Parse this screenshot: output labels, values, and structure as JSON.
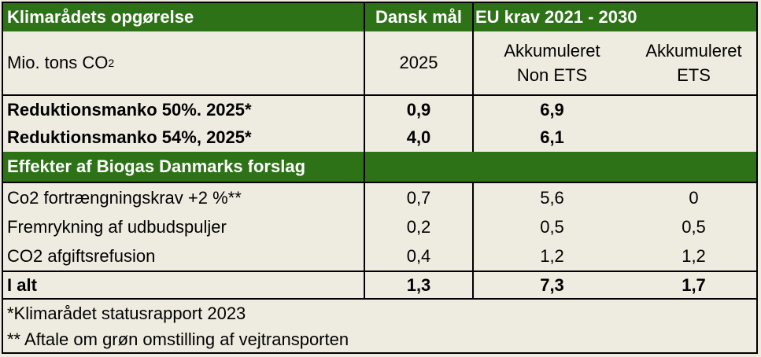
{
  "header": {
    "col1": "Klimarådets opgørelse",
    "col2": "Dansk mål",
    "col3": "EU krav 2021 - 2030"
  },
  "units_row": {
    "label_main": "Mio. tons CO",
    "label_sub": "2",
    "col2": "2025",
    "col3_line1": "Akkumuleret",
    "col3_line2": "Non ETS",
    "col4_line1": "Akkumuleret",
    "col4_line2": "ETS"
  },
  "shortfall_rows": [
    {
      "label": "Reduktionsmanko 50%. 2025*",
      "dansk": "0,9",
      "non_ets": "6,9",
      "ets": ""
    },
    {
      "label": "Reduktionsmanko 54%, 2025*",
      "dansk": "4,0",
      "non_ets": "6,1",
      "ets": ""
    }
  ],
  "section_title": "Effekter af Biogas Danmarks forslag",
  "effect_rows": [
    {
      "label": "Co2 fortrængningskrav +2 %**",
      "dansk": "0,7",
      "non_ets": "5,6",
      "ets": "0"
    },
    {
      "label": "Fremrykning af udbudspuljer",
      "dansk": "0,2",
      "non_ets": "0,5",
      "ets": "0,5"
    },
    {
      "label": "CO2 afgiftsrefusion",
      "dansk": "0,4",
      "non_ets": "1,2",
      "ets": "1,2"
    }
  ],
  "total_row": {
    "label": "I alt",
    "dansk": "1,3",
    "non_ets": "7,3",
    "ets": "1,7"
  },
  "footnotes": [
    "*Klimarådet statusrapport 2023",
    "** Aftale om grøn omstilling af vejtransporten"
  ],
  "colors": {
    "header_green": "#2e7218",
    "background": "#eeece1",
    "text_white": "#ffffff"
  }
}
